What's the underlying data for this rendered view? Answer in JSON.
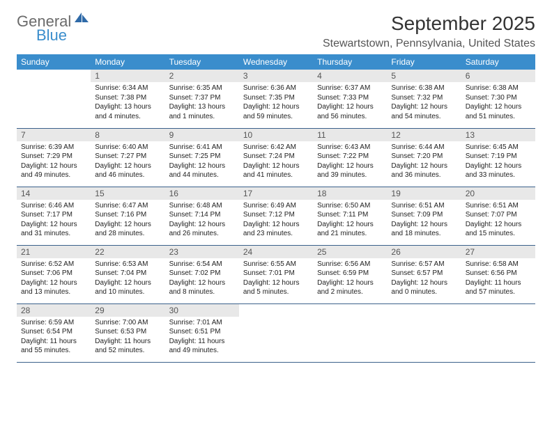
{
  "logo": {
    "word1": "General",
    "word2": "Blue"
  },
  "title": "September 2025",
  "location": "Stewartstown, Pennsylvania, United States",
  "colors": {
    "header_bg": "#3a8dcc",
    "daynum_bg": "#e8e8e8",
    "row_border": "#3a608a",
    "logo_gray": "#6b6b6b",
    "logo_blue": "#3a8dcc"
  },
  "day_names": [
    "Sunday",
    "Monday",
    "Tuesday",
    "Wednesday",
    "Thursday",
    "Friday",
    "Saturday"
  ],
  "weeks": [
    [
      null,
      {
        "n": "1",
        "sr": "Sunrise: 6:34 AM",
        "ss": "Sunset: 7:38 PM",
        "dl": "Daylight: 13 hours and 4 minutes."
      },
      {
        "n": "2",
        "sr": "Sunrise: 6:35 AM",
        "ss": "Sunset: 7:37 PM",
        "dl": "Daylight: 13 hours and 1 minutes."
      },
      {
        "n": "3",
        "sr": "Sunrise: 6:36 AM",
        "ss": "Sunset: 7:35 PM",
        "dl": "Daylight: 12 hours and 59 minutes."
      },
      {
        "n": "4",
        "sr": "Sunrise: 6:37 AM",
        "ss": "Sunset: 7:33 PM",
        "dl": "Daylight: 12 hours and 56 minutes."
      },
      {
        "n": "5",
        "sr": "Sunrise: 6:38 AM",
        "ss": "Sunset: 7:32 PM",
        "dl": "Daylight: 12 hours and 54 minutes."
      },
      {
        "n": "6",
        "sr": "Sunrise: 6:38 AM",
        "ss": "Sunset: 7:30 PM",
        "dl": "Daylight: 12 hours and 51 minutes."
      }
    ],
    [
      {
        "n": "7",
        "sr": "Sunrise: 6:39 AM",
        "ss": "Sunset: 7:29 PM",
        "dl": "Daylight: 12 hours and 49 minutes."
      },
      {
        "n": "8",
        "sr": "Sunrise: 6:40 AM",
        "ss": "Sunset: 7:27 PM",
        "dl": "Daylight: 12 hours and 46 minutes."
      },
      {
        "n": "9",
        "sr": "Sunrise: 6:41 AM",
        "ss": "Sunset: 7:25 PM",
        "dl": "Daylight: 12 hours and 44 minutes."
      },
      {
        "n": "10",
        "sr": "Sunrise: 6:42 AM",
        "ss": "Sunset: 7:24 PM",
        "dl": "Daylight: 12 hours and 41 minutes."
      },
      {
        "n": "11",
        "sr": "Sunrise: 6:43 AM",
        "ss": "Sunset: 7:22 PM",
        "dl": "Daylight: 12 hours and 39 minutes."
      },
      {
        "n": "12",
        "sr": "Sunrise: 6:44 AM",
        "ss": "Sunset: 7:20 PM",
        "dl": "Daylight: 12 hours and 36 minutes."
      },
      {
        "n": "13",
        "sr": "Sunrise: 6:45 AM",
        "ss": "Sunset: 7:19 PM",
        "dl": "Daylight: 12 hours and 33 minutes."
      }
    ],
    [
      {
        "n": "14",
        "sr": "Sunrise: 6:46 AM",
        "ss": "Sunset: 7:17 PM",
        "dl": "Daylight: 12 hours and 31 minutes."
      },
      {
        "n": "15",
        "sr": "Sunrise: 6:47 AM",
        "ss": "Sunset: 7:16 PM",
        "dl": "Daylight: 12 hours and 28 minutes."
      },
      {
        "n": "16",
        "sr": "Sunrise: 6:48 AM",
        "ss": "Sunset: 7:14 PM",
        "dl": "Daylight: 12 hours and 26 minutes."
      },
      {
        "n": "17",
        "sr": "Sunrise: 6:49 AM",
        "ss": "Sunset: 7:12 PM",
        "dl": "Daylight: 12 hours and 23 minutes."
      },
      {
        "n": "18",
        "sr": "Sunrise: 6:50 AM",
        "ss": "Sunset: 7:11 PM",
        "dl": "Daylight: 12 hours and 21 minutes."
      },
      {
        "n": "19",
        "sr": "Sunrise: 6:51 AM",
        "ss": "Sunset: 7:09 PM",
        "dl": "Daylight: 12 hours and 18 minutes."
      },
      {
        "n": "20",
        "sr": "Sunrise: 6:51 AM",
        "ss": "Sunset: 7:07 PM",
        "dl": "Daylight: 12 hours and 15 minutes."
      }
    ],
    [
      {
        "n": "21",
        "sr": "Sunrise: 6:52 AM",
        "ss": "Sunset: 7:06 PM",
        "dl": "Daylight: 12 hours and 13 minutes."
      },
      {
        "n": "22",
        "sr": "Sunrise: 6:53 AM",
        "ss": "Sunset: 7:04 PM",
        "dl": "Daylight: 12 hours and 10 minutes."
      },
      {
        "n": "23",
        "sr": "Sunrise: 6:54 AM",
        "ss": "Sunset: 7:02 PM",
        "dl": "Daylight: 12 hours and 8 minutes."
      },
      {
        "n": "24",
        "sr": "Sunrise: 6:55 AM",
        "ss": "Sunset: 7:01 PM",
        "dl": "Daylight: 12 hours and 5 minutes."
      },
      {
        "n": "25",
        "sr": "Sunrise: 6:56 AM",
        "ss": "Sunset: 6:59 PM",
        "dl": "Daylight: 12 hours and 2 minutes."
      },
      {
        "n": "26",
        "sr": "Sunrise: 6:57 AM",
        "ss": "Sunset: 6:57 PM",
        "dl": "Daylight: 12 hours and 0 minutes."
      },
      {
        "n": "27",
        "sr": "Sunrise: 6:58 AM",
        "ss": "Sunset: 6:56 PM",
        "dl": "Daylight: 11 hours and 57 minutes."
      }
    ],
    [
      {
        "n": "28",
        "sr": "Sunrise: 6:59 AM",
        "ss": "Sunset: 6:54 PM",
        "dl": "Daylight: 11 hours and 55 minutes."
      },
      {
        "n": "29",
        "sr": "Sunrise: 7:00 AM",
        "ss": "Sunset: 6:53 PM",
        "dl": "Daylight: 11 hours and 52 minutes."
      },
      {
        "n": "30",
        "sr": "Sunrise: 7:01 AM",
        "ss": "Sunset: 6:51 PM",
        "dl": "Daylight: 11 hours and 49 minutes."
      },
      null,
      null,
      null,
      null
    ]
  ]
}
